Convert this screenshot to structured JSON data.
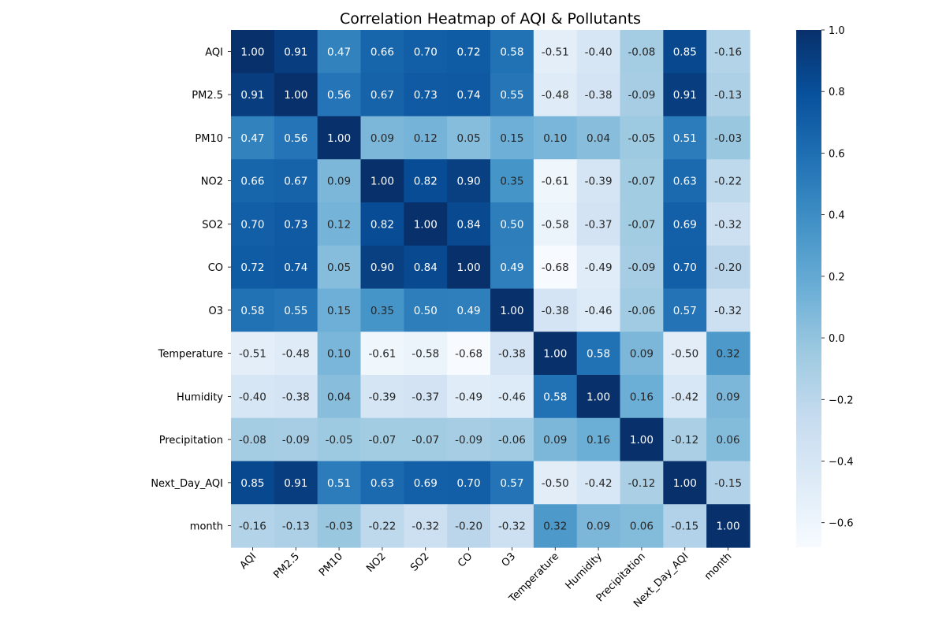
{
  "chart_data": {
    "type": "heatmap",
    "title": "Correlation Heatmap of AQI & Pollutants",
    "x_categories": [
      "AQI",
      "PM2.5",
      "PM10",
      "NO2",
      "SO2",
      "CO",
      "O3",
      "Temperature",
      "Humidity",
      "Precipitation",
      "Next_Day_AQI",
      "month"
    ],
    "y_categories": [
      "AQI",
      "PM2.5",
      "PM10",
      "NO2",
      "SO2",
      "CO",
      "O3",
      "Temperature",
      "Humidity",
      "Precipitation",
      "Next_Day_AQI",
      "month"
    ],
    "values": [
      [
        1.0,
        0.91,
        0.47,
        0.66,
        0.7,
        0.72,
        0.58,
        -0.51,
        -0.4,
        -0.08,
        0.85,
        -0.16
      ],
      [
        0.91,
        1.0,
        0.56,
        0.67,
        0.73,
        0.74,
        0.55,
        -0.48,
        -0.38,
        -0.09,
        0.91,
        -0.13
      ],
      [
        0.47,
        0.56,
        1.0,
        0.09,
        0.12,
        0.05,
        0.15,
        0.1,
        0.04,
        -0.05,
        0.51,
        -0.03
      ],
      [
        0.66,
        0.67,
        0.09,
        1.0,
        0.82,
        0.9,
        0.35,
        -0.61,
        -0.39,
        -0.07,
        0.63,
        -0.22
      ],
      [
        0.7,
        0.73,
        0.12,
        0.82,
        1.0,
        0.84,
        0.5,
        -0.58,
        -0.37,
        -0.07,
        0.69,
        -0.32
      ],
      [
        0.72,
        0.74,
        0.05,
        0.9,
        0.84,
        1.0,
        0.49,
        -0.68,
        -0.49,
        -0.09,
        0.7,
        -0.2
      ],
      [
        0.58,
        0.55,
        0.15,
        0.35,
        0.5,
        0.49,
        1.0,
        -0.38,
        -0.46,
        -0.06,
        0.57,
        -0.32
      ],
      [
        -0.51,
        -0.48,
        0.1,
        -0.61,
        -0.58,
        -0.68,
        -0.38,
        1.0,
        0.58,
        0.09,
        -0.5,
        0.32
      ],
      [
        -0.4,
        -0.38,
        0.04,
        -0.39,
        -0.37,
        -0.49,
        -0.46,
        0.58,
        1.0,
        0.16,
        -0.42,
        0.09
      ],
      [
        -0.08,
        -0.09,
        -0.05,
        -0.07,
        -0.07,
        -0.09,
        -0.06,
        0.09,
        0.16,
        1.0,
        -0.12,
        0.06
      ],
      [
        0.85,
        0.91,
        0.51,
        0.63,
        0.69,
        0.7,
        0.57,
        -0.5,
        -0.42,
        -0.12,
        1.0,
        -0.15
      ],
      [
        -0.16,
        -0.13,
        -0.03,
        -0.22,
        -0.32,
        -0.2,
        -0.32,
        0.32,
        0.09,
        0.06,
        -0.15,
        1.0
      ]
    ],
    "value_format": "0.00",
    "colormap": "Blues",
    "color_range": [
      -0.68,
      1.0
    ],
    "colorbar_ticks": [
      1.0,
      0.8,
      0.6,
      0.4,
      0.2,
      0.0,
      -0.2,
      -0.4,
      -0.6
    ],
    "colorbar_tick_labels": [
      "1.0",
      "0.8",
      "0.6",
      "0.4",
      "0.2",
      "0.0",
      "−0.2",
      "−0.4",
      "−0.6"
    ],
    "xlabel": "",
    "ylabel": "",
    "x_tick_rotation": 45,
    "colors": {
      "low": "#f7fbff",
      "high": "#08306b",
      "dark_text": "#262626",
      "light_text": "#ffffff"
    }
  }
}
